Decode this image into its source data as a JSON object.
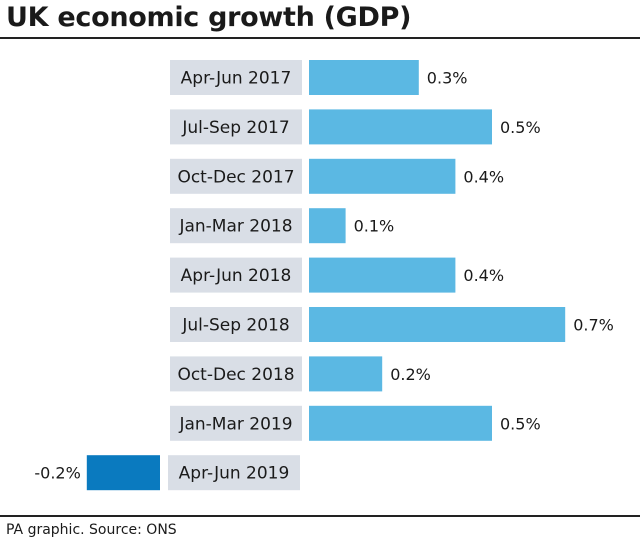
{
  "chart_data": {
    "type": "bar",
    "orientation": "horizontal",
    "title": "UK economic growth (GDP)",
    "categories": [
      "Apr-Jun 2017",
      "Jul-Sep 2017",
      "Oct-Dec 2017",
      "Jan-Mar 2018",
      "Apr-Jun 2018",
      "Jul-Sep 2018",
      "Oct-Dec 2018",
      "Jan-Mar 2019",
      "Apr-Jun 2019"
    ],
    "values": [
      0.3,
      0.5,
      0.4,
      0.1,
      0.4,
      0.7,
      0.2,
      0.5,
      -0.2
    ],
    "value_labels": [
      "0.3%",
      "0.5%",
      "0.4%",
      "0.1%",
      "0.4%",
      "0.7%",
      "0.2%",
      "0.5%",
      "-0.2%"
    ],
    "unit": "%",
    "xlabel": "",
    "ylabel": "",
    "colors": {
      "positive": "#5bb8e3",
      "negative": "#0a7abf",
      "label_bg": "#d9dee6"
    }
  },
  "footer": {
    "source": "PA graphic. Source: ONS"
  }
}
